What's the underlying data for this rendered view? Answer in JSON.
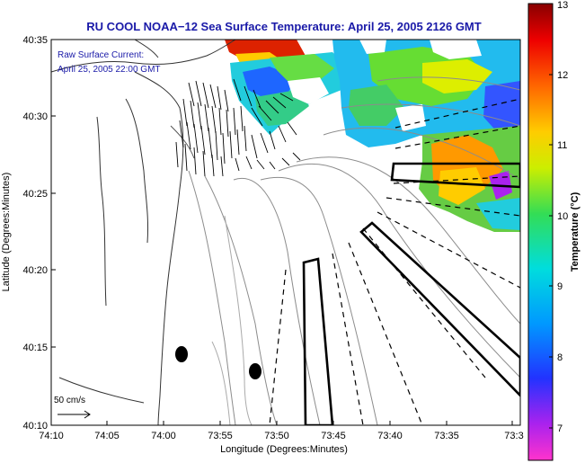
{
  "title": "RU COOL  NOAA−12  Sea Surface Temperature:  April 25, 2005 2126 GMT",
  "annotation": {
    "line1": "Raw Surface Current:",
    "line2": "April 25, 2005 22:00 GMT"
  },
  "scale_label": "50 cm/s",
  "x_axis": {
    "label": "Longitude (Degrees:Minutes)",
    "ticks": [
      "74:10",
      "74:05",
      "74:00",
      "73:55",
      "73:50",
      "73:45",
      "73:40",
      "73:35",
      "73:3"
    ]
  },
  "y_axis": {
    "label": "Latitude (Degrees:Minutes)",
    "ticks": [
      "40:35",
      "40:30",
      "40:25",
      "40:20",
      "40:15",
      "40:10"
    ]
  },
  "colorbar": {
    "label": "Temperature (°C)",
    "ticks": [
      "13",
      "12",
      "11",
      "10",
      "9",
      "8",
      "7"
    ]
  },
  "colors": {
    "title": "#1a1aa8",
    "annotation": "#1a1aa8"
  }
}
